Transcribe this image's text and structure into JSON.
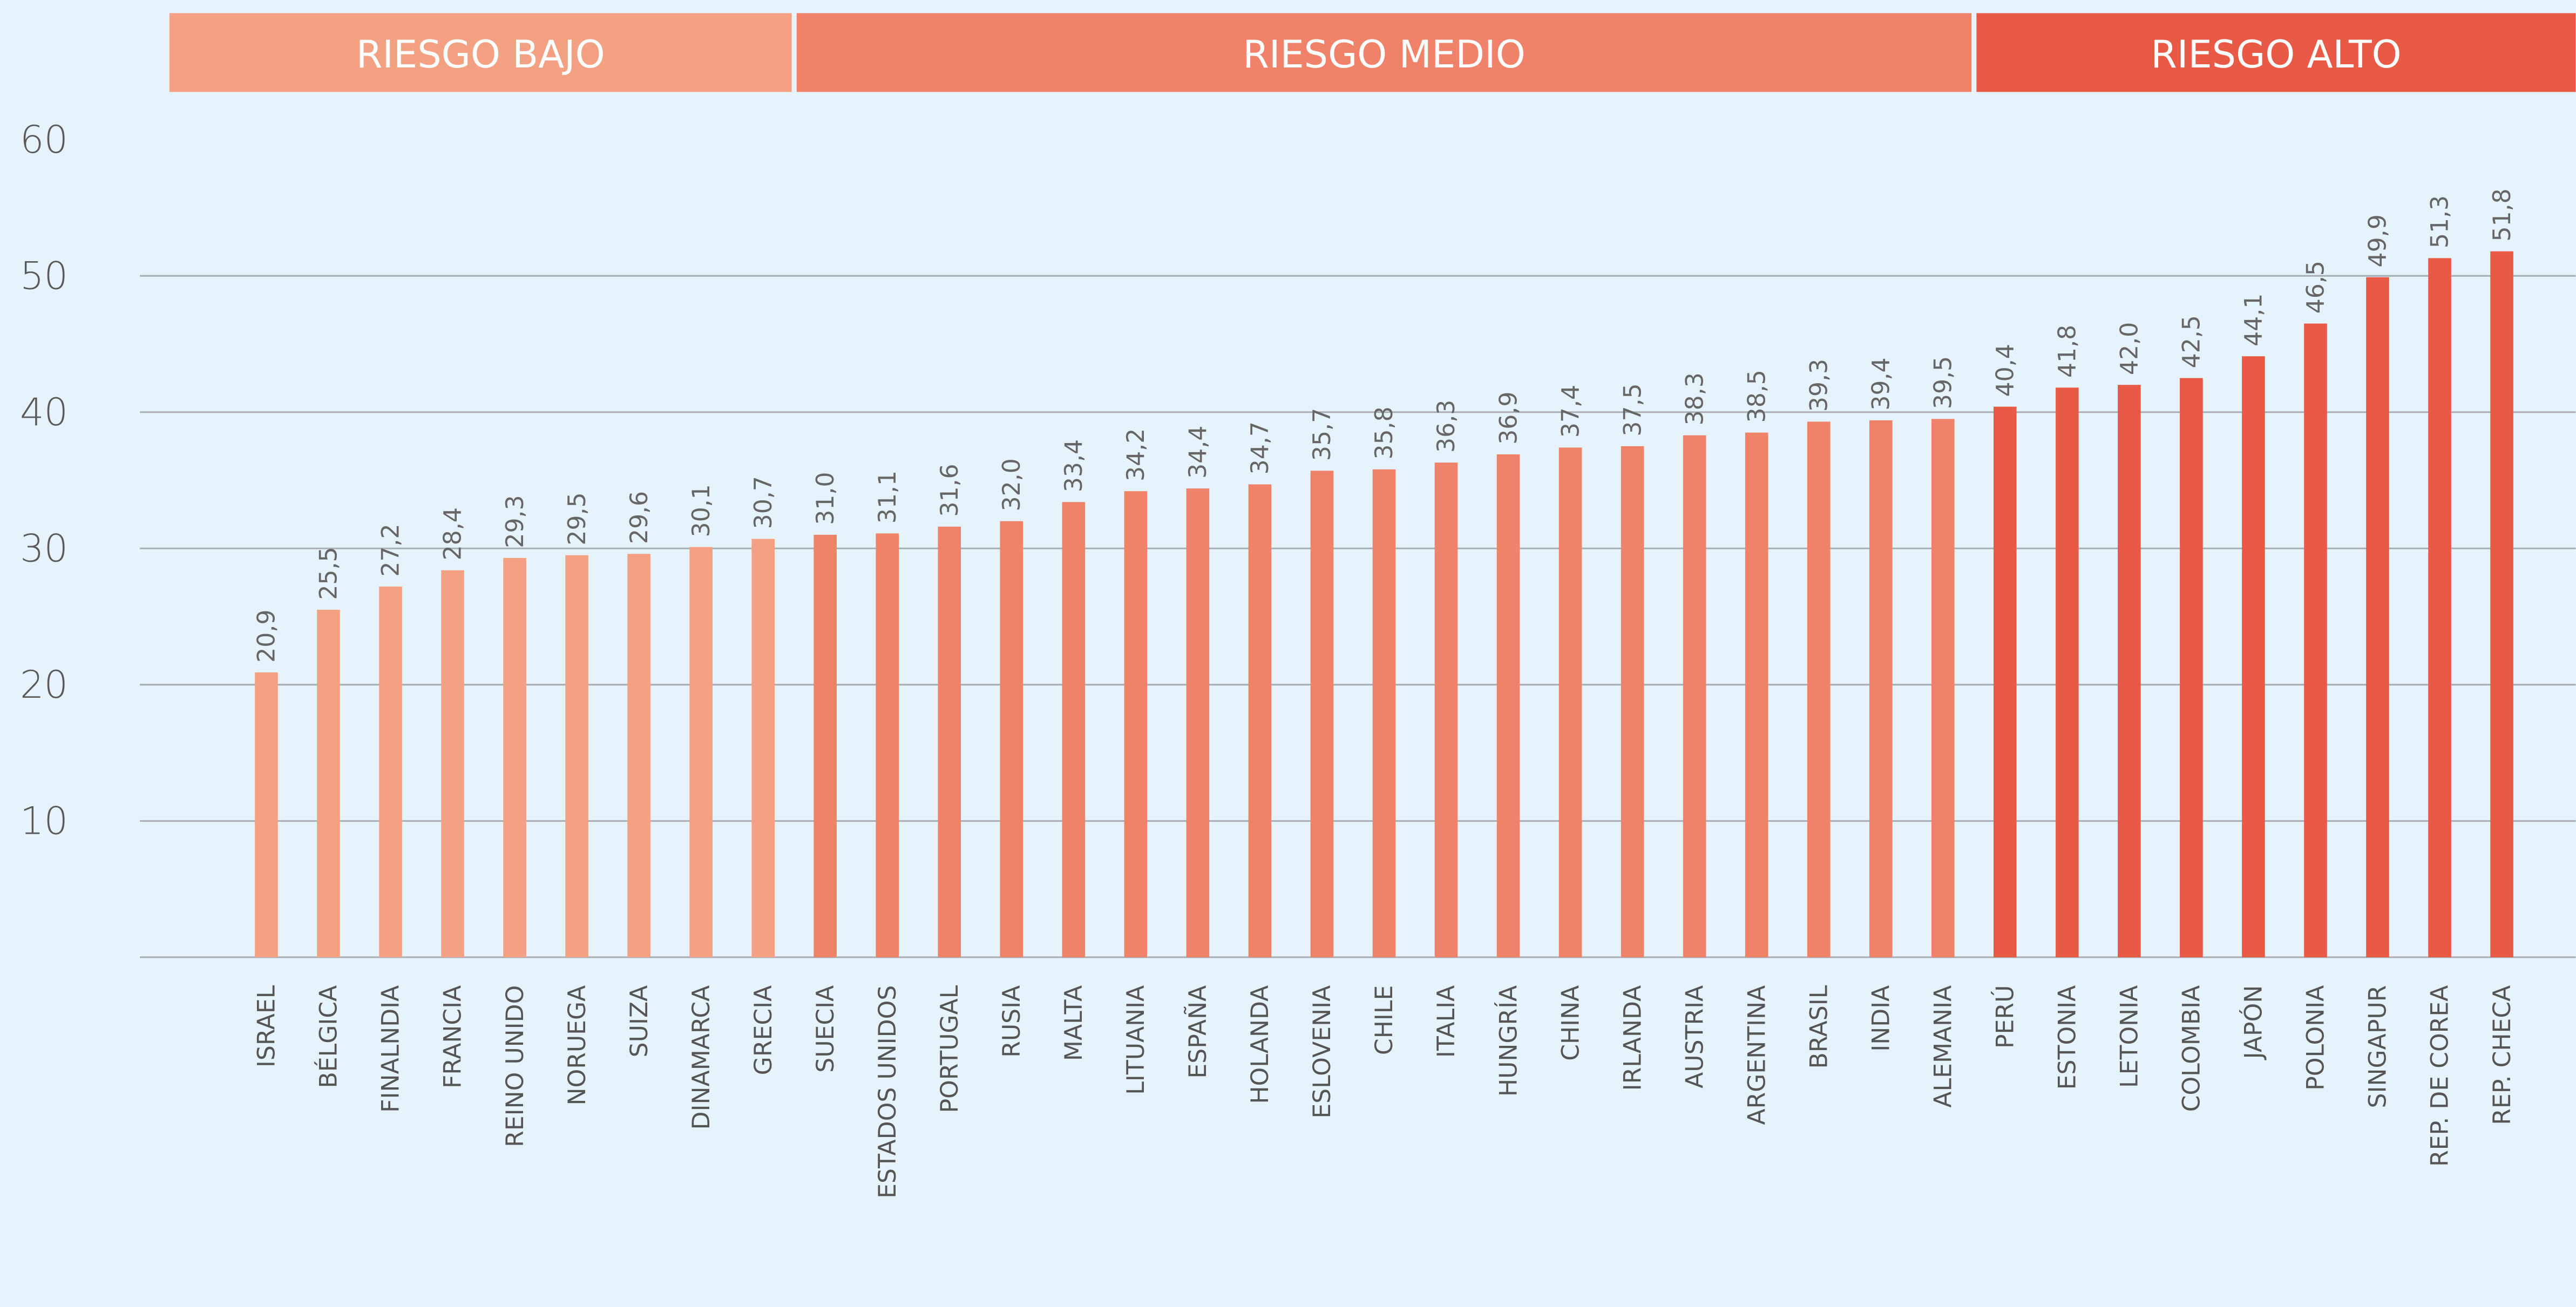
{
  "chart_data": {
    "type": "bar",
    "categories": [
      "ISRAEL",
      "BÉLGICA",
      "FINALNDIA",
      "FRANCIA",
      "REINO UNIDO",
      "NORUEGA",
      "SUIZA",
      "DINAMARCA",
      "GRECIA",
      "SUECIA",
      "ESTADOS UNIDOS",
      "PORTUGAL",
      "RUSIA",
      "MALTA",
      "LITUANIA",
      "ESPAÑA",
      "HOLANDA",
      "ESLOVENIA",
      "CHILE",
      "ITALIA",
      "HUNGRÍA",
      "CHINA",
      "IRLANDA",
      "AUSTRIA",
      "ARGENTINA",
      "BRASIL",
      "INDIA",
      "ALEMANIA",
      "PERÚ",
      "ESTONIA",
      "LETONIA",
      "COLOMBIA",
      "JAPÓN",
      "POLONIA",
      "SINGAPUR",
      "REP. DE COREA",
      "REP. CHECA"
    ],
    "series": [
      {
        "name": "RIESGO BAJO",
        "color": "#f4a083",
        "values": [
          20.9,
          25.5,
          27.2,
          28.4,
          29.3,
          29.5,
          29.6,
          30.1,
          30.7,
          null,
          null,
          null,
          null,
          null,
          null,
          null,
          null,
          null,
          null,
          null,
          null,
          null,
          null,
          null,
          null,
          null,
          null,
          null,
          null,
          null,
          null,
          null,
          null,
          null,
          null,
          null,
          null
        ],
        "value_labels": [
          "20,9",
          "25,5",
          "27,2",
          "28,4",
          "29,3",
          "29,5",
          "29,6",
          "30,1",
          "30,7",
          null,
          null,
          null,
          null,
          null,
          null,
          null,
          null,
          null,
          null,
          null,
          null,
          null,
          null,
          null,
          null,
          null,
          null,
          null,
          null,
          null,
          null,
          null,
          null,
          null,
          null,
          null,
          null
        ]
      },
      {
        "name": "RIESGO MEDIO",
        "color": "#f0826a",
        "values": [
          null,
          null,
          null,
          null,
          null,
          null,
          null,
          null,
          null,
          31.0,
          31.1,
          31.6,
          32.0,
          33.4,
          34.2,
          34.4,
          34.7,
          35.7,
          35.8,
          36.3,
          36.9,
          37.4,
          37.5,
          38.3,
          38.5,
          39.3,
          39.4,
          39.5,
          null,
          null,
          null,
          null,
          null,
          null,
          null,
          null,
          null
        ],
        "value_labels": [
          null,
          null,
          null,
          null,
          null,
          null,
          null,
          null,
          null,
          "31,0",
          "31,1",
          "31,6",
          "32,0",
          "33,4",
          "34,2",
          "34,4",
          "34,7",
          "35,7",
          "35,8",
          "36,3",
          "36,9",
          "37,4",
          "37,5",
          "38,3",
          "38,5",
          "39,3",
          "39,4",
          "39,5",
          null,
          null,
          null,
          null,
          null,
          null,
          null,
          null,
          null
        ]
      },
      {
        "name": "RIESGO ALTO",
        "color": "#e85a45",
        "values": [
          null,
          null,
          null,
          null,
          null,
          null,
          null,
          null,
          null,
          null,
          null,
          null,
          null,
          null,
          null,
          null,
          null,
          null,
          null,
          null,
          null,
          null,
          null,
          null,
          null,
          null,
          null,
          null,
          40.4,
          41.8,
          42.0,
          42.5,
          44.1,
          46.5,
          49.9,
          51.3,
          51.8
        ],
        "value_labels": [
          null,
          null,
          null,
          null,
          null,
          null,
          null,
          null,
          null,
          null,
          null,
          null,
          null,
          null,
          null,
          null,
          null,
          null,
          null,
          null,
          null,
          null,
          null,
          null,
          null,
          null,
          null,
          null,
          "40,4",
          "41,8",
          "42,0",
          "42,5",
          "44,1",
          "46,5",
          "49,9",
          "51,3",
          "51,8"
        ]
      }
    ],
    "ylim": [
      0,
      60
    ],
    "yticks": [
      10,
      20,
      30,
      40,
      50,
      60
    ],
    "grid": true
  }
}
